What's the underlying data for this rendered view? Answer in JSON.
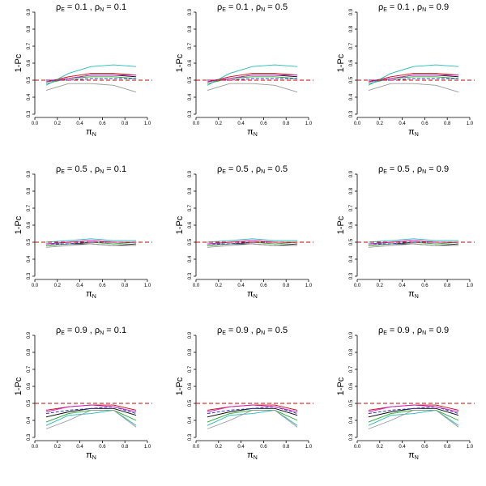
{
  "chart_data": {
    "type": "line",
    "layout": "3x3 grid of small multiples",
    "xlabel": "π_N",
    "ylabel": "1-Pc",
    "xlim": [
      0.0,
      1.0
    ],
    "ylim": [
      0.3,
      0.9
    ],
    "xticks": [
      "0.0",
      "0.2",
      "0.4",
      "0.6",
      "0.8",
      "1.0"
    ],
    "yticks": [
      "0.3",
      "0.4",
      "0.5",
      "0.6",
      "0.7",
      "0.8",
      "0.9"
    ],
    "x": [
      0.1,
      0.3,
      0.5,
      0.7,
      0.9
    ],
    "reference_line": {
      "y": 0.5,
      "style": "dashed",
      "color": "#cc0000"
    },
    "series_colors": [
      "#000000",
      "#cc0000",
      "#22aa22",
      "#2222cc",
      "#22bbbb",
      "#cc22cc",
      "#999999"
    ],
    "panels": [
      {
        "title_rho_e": "0.1",
        "title_rho_n": "0.1",
        "series": [
          {
            "values": [
              0.49,
              0.51,
              0.53,
              0.53,
              0.52
            ]
          },
          {
            "values": [
              0.49,
              0.52,
              0.54,
              0.54,
              0.53
            ]
          },
          {
            "values": [
              0.48,
              0.51,
              0.52,
              0.52,
              0.51
            ]
          },
          {
            "values": [
              0.5,
              0.5,
              0.51,
              0.51,
              0.51
            ]
          },
          {
            "values": [
              0.47,
              0.54,
              0.58,
              0.59,
              0.58
            ]
          },
          {
            "values": [
              0.49,
              0.51,
              0.53,
              0.53,
              0.53
            ]
          },
          {
            "values": [
              0.44,
              0.48,
              0.48,
              0.47,
              0.43
            ]
          }
        ]
      },
      {
        "title_rho_e": "0.1",
        "title_rho_n": "0.5",
        "series": [
          {
            "values": [
              0.49,
              0.51,
              0.53,
              0.53,
              0.52
            ]
          },
          {
            "values": [
              0.49,
              0.52,
              0.54,
              0.54,
              0.53
            ]
          },
          {
            "values": [
              0.48,
              0.51,
              0.52,
              0.52,
              0.51
            ]
          },
          {
            "values": [
              0.5,
              0.5,
              0.51,
              0.51,
              0.51
            ]
          },
          {
            "values": [
              0.47,
              0.54,
              0.58,
              0.59,
              0.58
            ]
          },
          {
            "values": [
              0.49,
              0.51,
              0.53,
              0.53,
              0.53
            ]
          },
          {
            "values": [
              0.44,
              0.48,
              0.48,
              0.47,
              0.43
            ]
          }
        ]
      },
      {
        "title_rho_e": "0.1",
        "title_rho_n": "0.9",
        "series": [
          {
            "values": [
              0.49,
              0.51,
              0.53,
              0.53,
              0.52
            ]
          },
          {
            "values": [
              0.49,
              0.52,
              0.54,
              0.54,
              0.53
            ]
          },
          {
            "values": [
              0.48,
              0.51,
              0.52,
              0.52,
              0.51
            ]
          },
          {
            "values": [
              0.5,
              0.5,
              0.51,
              0.51,
              0.51
            ]
          },
          {
            "values": [
              0.47,
              0.54,
              0.58,
              0.59,
              0.58
            ]
          },
          {
            "values": [
              0.49,
              0.51,
              0.53,
              0.53,
              0.53
            ]
          },
          {
            "values": [
              0.44,
              0.48,
              0.48,
              0.47,
              0.43
            ]
          }
        ]
      },
      {
        "title_rho_e": "0.5",
        "title_rho_n": "0.1",
        "series": [
          {
            "values": [
              0.48,
              0.49,
              0.49,
              0.48,
              0.49
            ]
          },
          {
            "values": [
              0.49,
              0.5,
              0.51,
              0.5,
              0.5
            ]
          },
          {
            "values": [
              0.48,
              0.49,
              0.5,
              0.49,
              0.5
            ]
          },
          {
            "values": [
              0.49,
              0.49,
              0.5,
              0.5,
              0.5
            ]
          },
          {
            "values": [
              0.5,
              0.51,
              0.52,
              0.51,
              0.51
            ]
          },
          {
            "values": [
              0.49,
              0.5,
              0.51,
              0.5,
              0.5
            ]
          },
          {
            "values": [
              0.47,
              0.48,
              0.49,
              0.48,
              0.48
            ]
          }
        ]
      },
      {
        "title_rho_e": "0.5",
        "title_rho_n": "0.5",
        "series": [
          {
            "values": [
              0.48,
              0.49,
              0.49,
              0.48,
              0.49
            ]
          },
          {
            "values": [
              0.49,
              0.5,
              0.51,
              0.5,
              0.5
            ]
          },
          {
            "values": [
              0.48,
              0.49,
              0.5,
              0.49,
              0.5
            ]
          },
          {
            "values": [
              0.49,
              0.49,
              0.5,
              0.5,
              0.5
            ]
          },
          {
            "values": [
              0.5,
              0.51,
              0.52,
              0.51,
              0.51
            ]
          },
          {
            "values": [
              0.49,
              0.5,
              0.51,
              0.5,
              0.5
            ]
          },
          {
            "values": [
              0.47,
              0.48,
              0.49,
              0.48,
              0.48
            ]
          }
        ]
      },
      {
        "title_rho_e": "0.5",
        "title_rho_n": "0.9",
        "series": [
          {
            "values": [
              0.48,
              0.49,
              0.49,
              0.48,
              0.49
            ]
          },
          {
            "values": [
              0.49,
              0.5,
              0.51,
              0.5,
              0.5
            ]
          },
          {
            "values": [
              0.48,
              0.49,
              0.5,
              0.49,
              0.5
            ]
          },
          {
            "values": [
              0.49,
              0.49,
              0.5,
              0.5,
              0.5
            ]
          },
          {
            "values": [
              0.5,
              0.51,
              0.52,
              0.51,
              0.51
            ]
          },
          {
            "values": [
              0.49,
              0.5,
              0.51,
              0.5,
              0.5
            ]
          },
          {
            "values": [
              0.47,
              0.48,
              0.49,
              0.48,
              0.48
            ]
          }
        ]
      },
      {
        "title_rho_e": "0.9",
        "title_rho_n": "0.1",
        "series": [
          {
            "values": [
              0.42,
              0.45,
              0.47,
              0.47,
              0.43
            ]
          },
          {
            "values": [
              0.46,
              0.48,
              0.49,
              0.49,
              0.46
            ]
          },
          {
            "values": [
              0.39,
              0.44,
              0.46,
              0.46,
              0.4
            ]
          },
          {
            "values": [
              0.44,
              0.46,
              0.47,
              0.48,
              0.44
            ]
          },
          {
            "values": [
              0.37,
              0.43,
              0.44,
              0.46,
              0.37
            ]
          },
          {
            "values": [
              0.45,
              0.48,
              0.49,
              0.48,
              0.45
            ]
          },
          {
            "values": [
              0.35,
              0.4,
              0.46,
              0.46,
              0.36
            ]
          }
        ]
      },
      {
        "title_rho_e": "0.9",
        "title_rho_n": "0.5",
        "series": [
          {
            "values": [
              0.42,
              0.45,
              0.47,
              0.47,
              0.43
            ]
          },
          {
            "values": [
              0.46,
              0.48,
              0.49,
              0.49,
              0.46
            ]
          },
          {
            "values": [
              0.39,
              0.44,
              0.46,
              0.46,
              0.4
            ]
          },
          {
            "values": [
              0.44,
              0.46,
              0.47,
              0.48,
              0.44
            ]
          },
          {
            "values": [
              0.37,
              0.43,
              0.44,
              0.46,
              0.37
            ]
          },
          {
            "values": [
              0.45,
              0.48,
              0.49,
              0.48,
              0.45
            ]
          },
          {
            "values": [
              0.35,
              0.4,
              0.46,
              0.46,
              0.36
            ]
          }
        ]
      },
      {
        "title_rho_e": "0.9",
        "title_rho_n": "0.9",
        "series": [
          {
            "values": [
              0.42,
              0.45,
              0.47,
              0.47,
              0.43
            ]
          },
          {
            "values": [
              0.46,
              0.48,
              0.49,
              0.49,
              0.46
            ]
          },
          {
            "values": [
              0.39,
              0.44,
              0.46,
              0.46,
              0.4
            ]
          },
          {
            "values": [
              0.44,
              0.46,
              0.47,
              0.48,
              0.44
            ]
          },
          {
            "values": [
              0.37,
              0.43,
              0.44,
              0.46,
              0.37
            ]
          },
          {
            "values": [
              0.45,
              0.48,
              0.49,
              0.48,
              0.45
            ]
          },
          {
            "values": [
              0.35,
              0.4,
              0.46,
              0.46,
              0.36
            ]
          }
        ]
      }
    ]
  }
}
